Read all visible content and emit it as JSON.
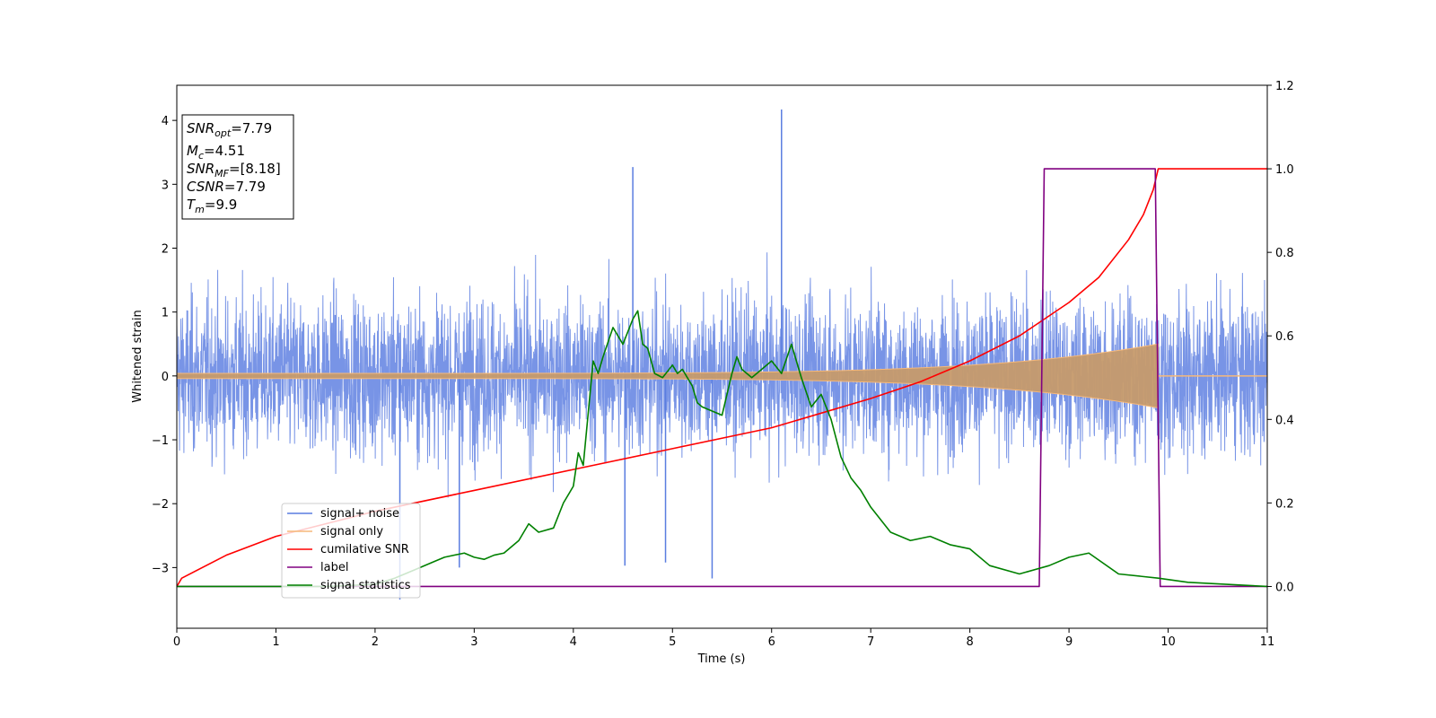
{
  "chart_data": {
    "type": "line",
    "xlabel": "Time (s)",
    "ylabel": "Whitened strain",
    "xlim": [
      0,
      11
    ],
    "ylim_left": [
      -3.95,
      4.55
    ],
    "ylim_right": [
      -0.1,
      1.2
    ],
    "x_ticks": [
      0,
      1,
      2,
      3,
      4,
      5,
      6,
      7,
      8,
      9,
      10,
      11
    ],
    "y_ticks_left": [
      -3,
      -2,
      -1,
      0,
      1,
      2,
      3,
      4
    ],
    "y_ticks_right": [
      0.0,
      0.2,
      0.4,
      0.6,
      0.8,
      1.0,
      1.2
    ],
    "y_tick_labels_left": [
      "−3",
      "−2",
      "−1",
      "0",
      "1",
      "2",
      "3",
      "4"
    ],
    "y_tick_labels_right": [
      "0.0",
      "0.2",
      "0.4",
      "0.6",
      "0.8",
      "1.0",
      "1.2"
    ],
    "grid": false,
    "legend_position": "lower-left",
    "info_box": {
      "snr_opt": {
        "base": "SNR",
        "sub": "opt",
        "value": "=7.79"
      },
      "mc": {
        "base": "M",
        "sub": "c",
        "value": "=4.51"
      },
      "snr_mf": {
        "base": "SNR",
        "sub": "MF",
        "value": "=[8.18]"
      },
      "csnr": {
        "base": "CSNR",
        "value": "=7.79"
      },
      "tm": {
        "base": "T",
        "sub": "m",
        "value": "=9.9"
      }
    },
    "series": [
      {
        "name": "signal+ noise",
        "color": "#5a7de0",
        "axis": "left",
        "description_level": "noise envelope approx ±1.5 typical, peaks near ±2.5",
        "spikes": [
          [
            6.1,
            4.17
          ],
          [
            4.6,
            3.27
          ],
          [
            5.4,
            -3.17
          ],
          [
            2.25,
            -3.5
          ],
          [
            4.52,
            -2.97
          ],
          [
            2.85,
            -3.0
          ],
          [
            4.93,
            -2.92
          ]
        ]
      },
      {
        "name": "signal only",
        "color": "#f5b87a",
        "axis": "left",
        "chirp_start": 0,
        "chirp_end": 9.9,
        "amplitude_start": 0.04,
        "amplitude_end": 0.5
      },
      {
        "name": "cumilative SNR",
        "color": "#ff0000",
        "axis": "right",
        "x": [
          0,
          0.05,
          0.5,
          1,
          2,
          3,
          4,
          5,
          6,
          7,
          7.5,
          8,
          8.5,
          9,
          9.3,
          9.6,
          9.75,
          9.85,
          9.9,
          11
        ],
        "y": [
          0,
          0.02,
          0.075,
          0.12,
          0.18,
          0.23,
          0.28,
          0.33,
          0.38,
          0.45,
          0.49,
          0.54,
          0.6,
          0.68,
          0.74,
          0.83,
          0.89,
          0.95,
          1.0,
          1.0
        ]
      },
      {
        "name": "label",
        "color": "#800080",
        "axis": "right",
        "x": [
          0,
          8.7,
          8.75,
          9.87,
          9.92,
          11
        ],
        "y": [
          0,
          0,
          1,
          1,
          0,
          0
        ]
      },
      {
        "name": "signal statistics",
        "color": "#008000",
        "axis": "right",
        "x": [
          0,
          1.5,
          2.0,
          2.2,
          2.4,
          2.6,
          2.7,
          2.9,
          3.0,
          3.1,
          3.2,
          3.3,
          3.45,
          3.55,
          3.65,
          3.8,
          3.9,
          4.0,
          4.05,
          4.1,
          4.2,
          4.25,
          4.3,
          4.4,
          4.5,
          4.6,
          4.65,
          4.7,
          4.75,
          4.82,
          4.9,
          5.0,
          5.05,
          5.1,
          5.2,
          5.25,
          5.3,
          5.4,
          5.5,
          5.6,
          5.65,
          5.7,
          5.8,
          5.9,
          6.0,
          6.1,
          6.2,
          6.3,
          6.4,
          6.5,
          6.6,
          6.7,
          6.8,
          6.9,
          7.0,
          7.2,
          7.4,
          7.6,
          7.8,
          8.0,
          8.2,
          8.5,
          8.8,
          9.0,
          9.2,
          9.5,
          9.9,
          10.2,
          11
        ],
        "y": [
          0,
          0,
          0.005,
          0.02,
          0.04,
          0.06,
          0.07,
          0.08,
          0.07,
          0.065,
          0.075,
          0.08,
          0.11,
          0.15,
          0.13,
          0.14,
          0.2,
          0.24,
          0.32,
          0.29,
          0.54,
          0.51,
          0.55,
          0.62,
          0.58,
          0.64,
          0.66,
          0.58,
          0.57,
          0.51,
          0.5,
          0.53,
          0.51,
          0.52,
          0.48,
          0.44,
          0.43,
          0.42,
          0.41,
          0.51,
          0.55,
          0.52,
          0.5,
          0.52,
          0.54,
          0.51,
          0.58,
          0.5,
          0.43,
          0.46,
          0.4,
          0.31,
          0.26,
          0.23,
          0.19,
          0.13,
          0.11,
          0.12,
          0.1,
          0.09,
          0.05,
          0.03,
          0.05,
          0.07,
          0.08,
          0.03,
          0.02,
          0.01,
          0
        ]
      }
    ]
  }
}
